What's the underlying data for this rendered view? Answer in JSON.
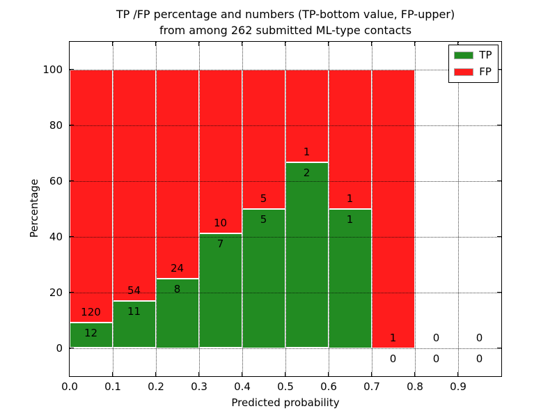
{
  "figure": {
    "title_line1": "TP /FP percentage and numbers (TP-bottom value, FP-upper)",
    "title_line2": "from among 262 submitted ML-type contacts"
  },
  "axes": {
    "xlabel": "Predicted probability",
    "ylabel": "Percentage",
    "xticks": [
      "0.0",
      "0.1",
      "0.2",
      "0.3",
      "0.4",
      "0.5",
      "0.6",
      "0.7",
      "0.8",
      "0.9"
    ],
    "yticks": [
      "0",
      "20",
      "40",
      "60",
      "80",
      "100"
    ]
  },
  "legend": {
    "items": [
      {
        "label": "TP",
        "color": "#228b22"
      },
      {
        "label": "FP",
        "color": "#ff1c1c"
      }
    ]
  },
  "chart_data": {
    "type": "bar",
    "stacked": true,
    "title": "TP /FP percentage and numbers (TP-bottom value, FP-upper) from among 262 submitted ML-type contacts",
    "xlabel": "Predicted probability",
    "ylabel": "Percentage",
    "xlim": [
      0.0,
      1.0
    ],
    "ylim": [
      -10,
      110
    ],
    "xticks": [
      0.0,
      0.1,
      0.2,
      0.3,
      0.4,
      0.5,
      0.6,
      0.7,
      0.8,
      0.9
    ],
    "yticks": [
      0,
      20,
      40,
      60,
      80,
      100
    ],
    "grid": true,
    "grid_style": "dotted",
    "legend_position": "upper right",
    "total_contacts": 262,
    "bin_width": 0.1,
    "bin_starts": [
      0.0,
      0.1,
      0.2,
      0.3,
      0.4,
      0.5,
      0.6,
      0.7,
      0.8,
      0.9
    ],
    "series": [
      {
        "name": "TP",
        "color": "#228b22",
        "counts": [
          12,
          11,
          8,
          7,
          5,
          2,
          1,
          0,
          0,
          0
        ],
        "percent": [
          9.09,
          16.92,
          25.0,
          41.18,
          50.0,
          66.67,
          50.0,
          0.0,
          0.0,
          0.0
        ]
      },
      {
        "name": "FP",
        "color": "#ff1c1c",
        "counts": [
          120,
          54,
          24,
          10,
          5,
          1,
          1,
          1,
          0,
          0
        ],
        "percent": [
          90.91,
          83.08,
          75.0,
          58.82,
          50.0,
          33.33,
          50.0,
          100.0,
          0.0,
          0.0
        ]
      }
    ]
  }
}
